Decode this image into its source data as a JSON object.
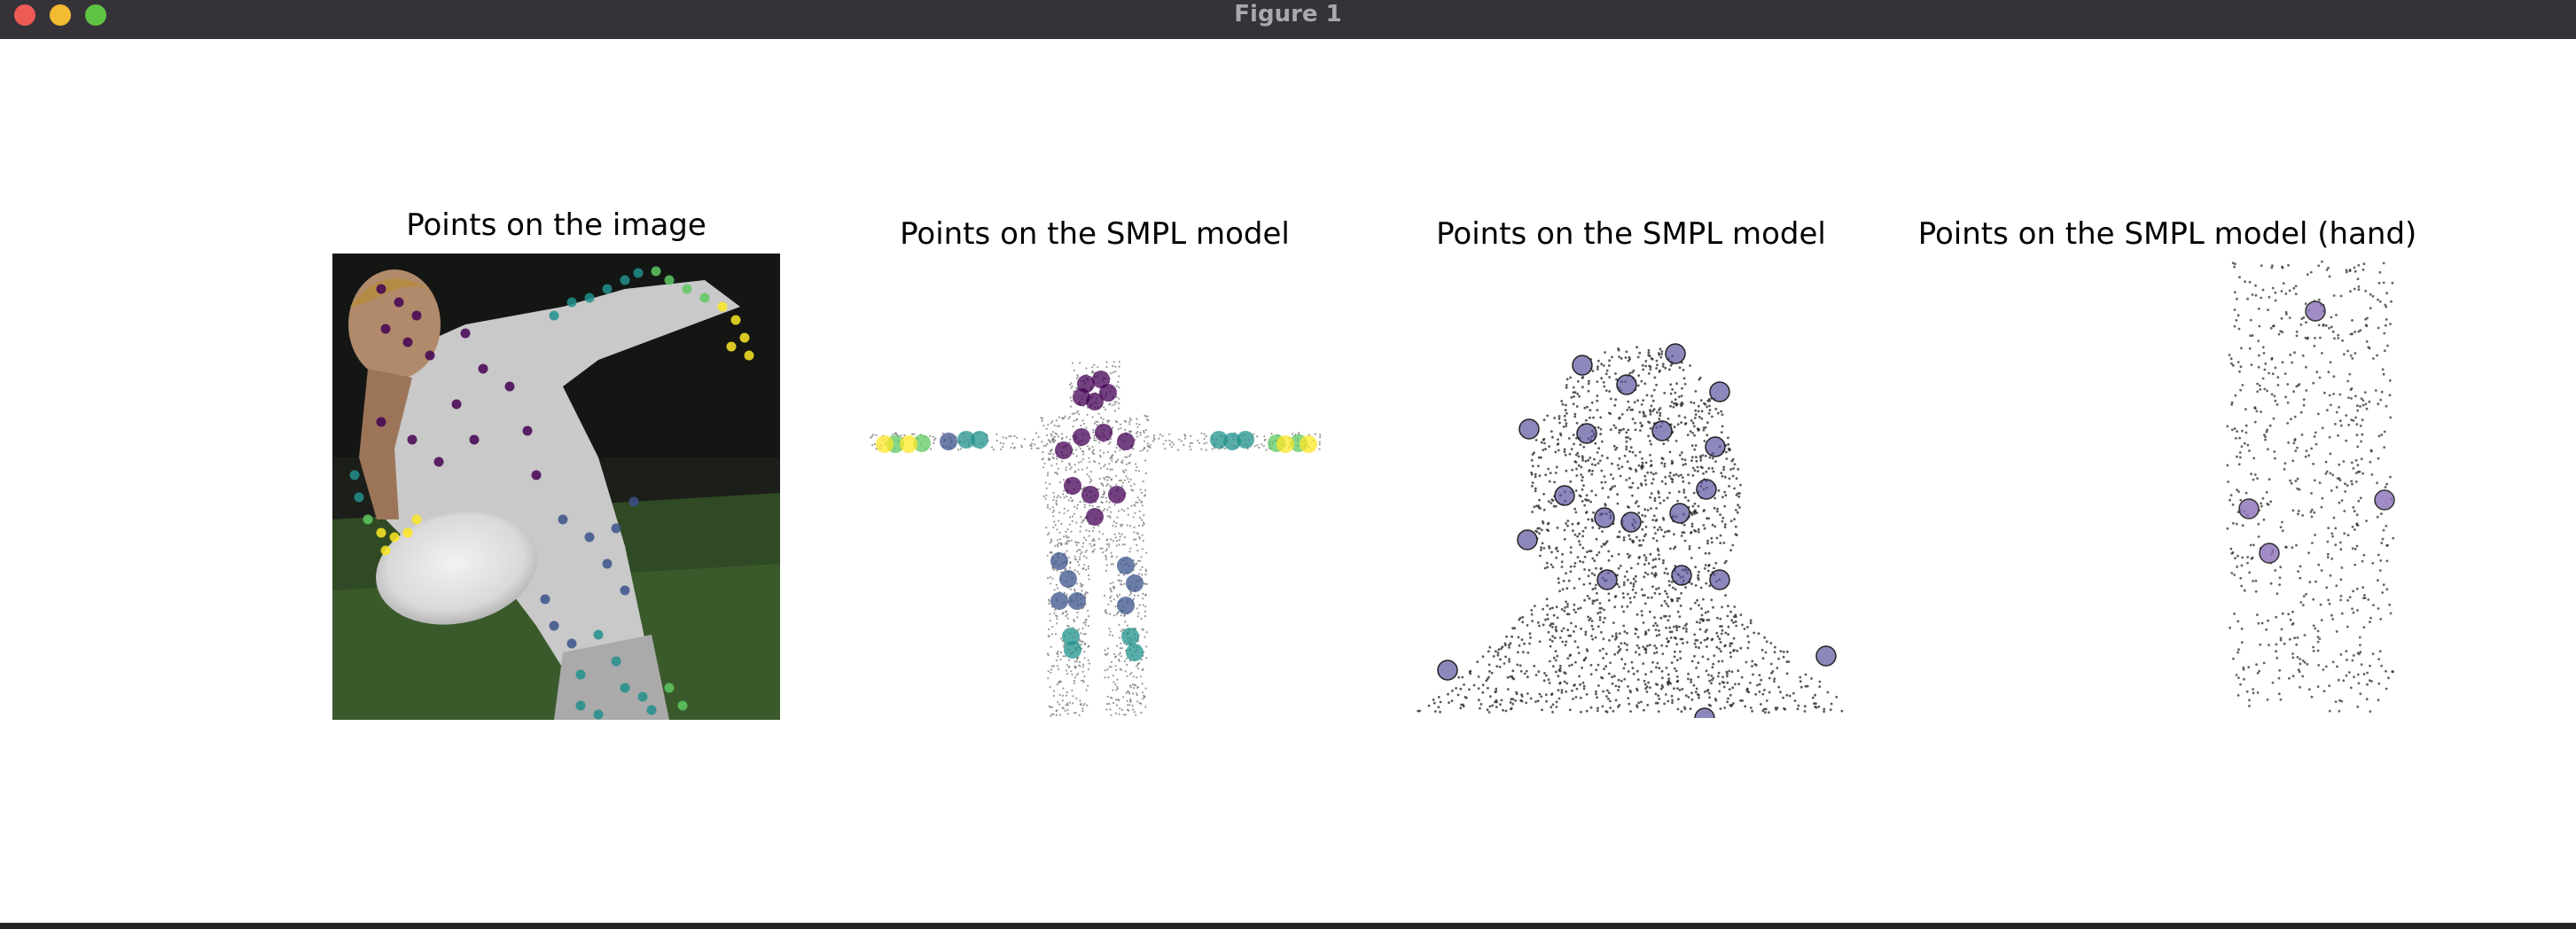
{
  "window": {
    "title": "Figure 1"
  },
  "panels": [
    {
      "id": "image",
      "title": "Points on the image"
    },
    {
      "id": "smpl-body",
      "title": "Points on the SMPL model"
    },
    {
      "id": "smpl-face",
      "title": "Points on the SMPL model"
    },
    {
      "id": "smpl-hand",
      "title": "Points on the SMPL model (hand)"
    }
  ],
  "colors": {
    "titlebar": "#353338",
    "close": "#ee5b55",
    "minimize": "#f2bb31",
    "maximize": "#5fc443",
    "colormap": [
      "#440154",
      "#3b528b",
      "#21918c",
      "#5ec962",
      "#fde725"
    ]
  }
}
